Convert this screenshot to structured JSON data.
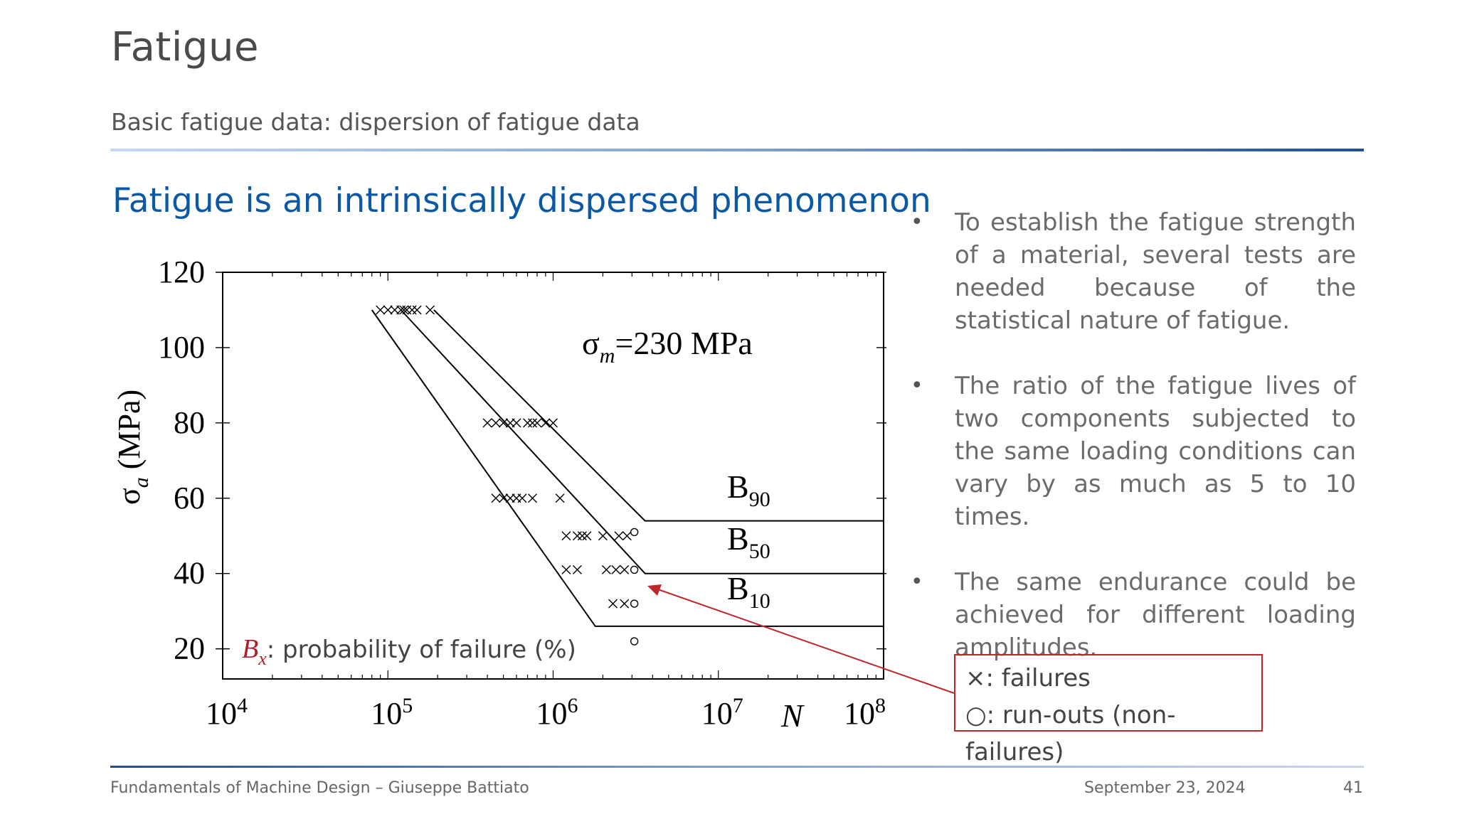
{
  "slide": {
    "title": "Fatigue",
    "subtitle": "Basic fatigue data: dispersion of fatigue data",
    "heading": "Fatigue is an intrinsically dispersed phenomenon"
  },
  "bullets": [
    "To establish the fatigue strength of a material, several tests are needed because of the statistical nature of fatigue.",
    "The ratio of the fatigue lives of two components subjected to the same loading conditions can vary by as much as 5 to 10 times.",
    "The same endurance could be achieved for different loading amplitudes."
  ],
  "legend_box": {
    "failures": "×: failures",
    "runouts": "○: run-outs (non-failures)"
  },
  "footer": {
    "left": "Fundamentals of Machine Design – Giuseppe Battiato",
    "date": "September 23, 2024",
    "page": "41"
  },
  "colors": {
    "title": "#4a4a4a",
    "heading": "#0b58a5",
    "accent_red": "#c0272d",
    "rule_dark": "#1d4f9c"
  },
  "chart_data": {
    "type": "scatter",
    "xscale": "log",
    "xlim": [
      10000,
      100000000
    ],
    "ylim": [
      12,
      120
    ],
    "x_tick_labels": [
      {
        "base": "10",
        "exp": "4"
      },
      {
        "base": "10",
        "exp": "5"
      },
      {
        "base": "10",
        "exp": "6"
      },
      {
        "base": "10",
        "exp": "7"
      },
      {
        "base": "10",
        "exp": "8"
      }
    ],
    "y_tick_labels": [
      "120",
      "100",
      "80",
      "60",
      "40",
      "20"
    ],
    "ylabel": {
      "sym": "σ",
      "sub": "a",
      "unit": "(MPa)"
    },
    "xlabel": "N",
    "annotation": {
      "sym": "σ",
      "sub": "m",
      "rest": "=230 MPa"
    },
    "note": {
      "sym": "B",
      "sub": "x",
      "rest": ": probability of failure (%)"
    },
    "curves": [
      {
        "label": "B",
        "sub": "90",
        "points": [
          [
            190000,
            110
          ],
          [
            3600000,
            54
          ],
          [
            100000000,
            54
          ]
        ]
      },
      {
        "label": "B",
        "sub": "50",
        "points": [
          [
            120000,
            110
          ],
          [
            3600000,
            40
          ],
          [
            100000000,
            40
          ]
        ]
      },
      {
        "label": "B",
        "sub": "10",
        "points": [
          [
            80000,
            110
          ],
          [
            1800000,
            26
          ],
          [
            100000000,
            26
          ]
        ]
      }
    ],
    "failures": [
      [
        90000,
        110
      ],
      [
        100000,
        110
      ],
      [
        110000,
        110
      ],
      [
        120000,
        110
      ],
      [
        125000,
        110
      ],
      [
        130000,
        110
      ],
      [
        140000,
        110
      ],
      [
        150000,
        110
      ],
      [
        180000,
        110
      ],
      [
        400000,
        80
      ],
      [
        450000,
        80
      ],
      [
        500000,
        80
      ],
      [
        550000,
        80
      ],
      [
        600000,
        80
      ],
      [
        700000,
        80
      ],
      [
        750000,
        80
      ],
      [
        800000,
        80
      ],
      [
        900000,
        80
      ],
      [
        1000000,
        80
      ],
      [
        450000,
        60
      ],
      [
        500000,
        60
      ],
      [
        550000,
        60
      ],
      [
        600000,
        60
      ],
      [
        650000,
        60
      ],
      [
        750000,
        60
      ],
      [
        1100000,
        60
      ],
      [
        1200000,
        50
      ],
      [
        1400000,
        50
      ],
      [
        1500000,
        50
      ],
      [
        1600000,
        50
      ],
      [
        2000000,
        50
      ],
      [
        2500000,
        50
      ],
      [
        2800000,
        50
      ],
      [
        1200000,
        41
      ],
      [
        1400000,
        41
      ],
      [
        2100000,
        41
      ],
      [
        2400000,
        41
      ],
      [
        2700000,
        41
      ],
      [
        2300000,
        32
      ],
      [
        2700000,
        32
      ]
    ],
    "runouts": [
      [
        3100000,
        51
      ],
      [
        3100000,
        41
      ],
      [
        3100000,
        32
      ],
      [
        3100000,
        22
      ]
    ]
  }
}
